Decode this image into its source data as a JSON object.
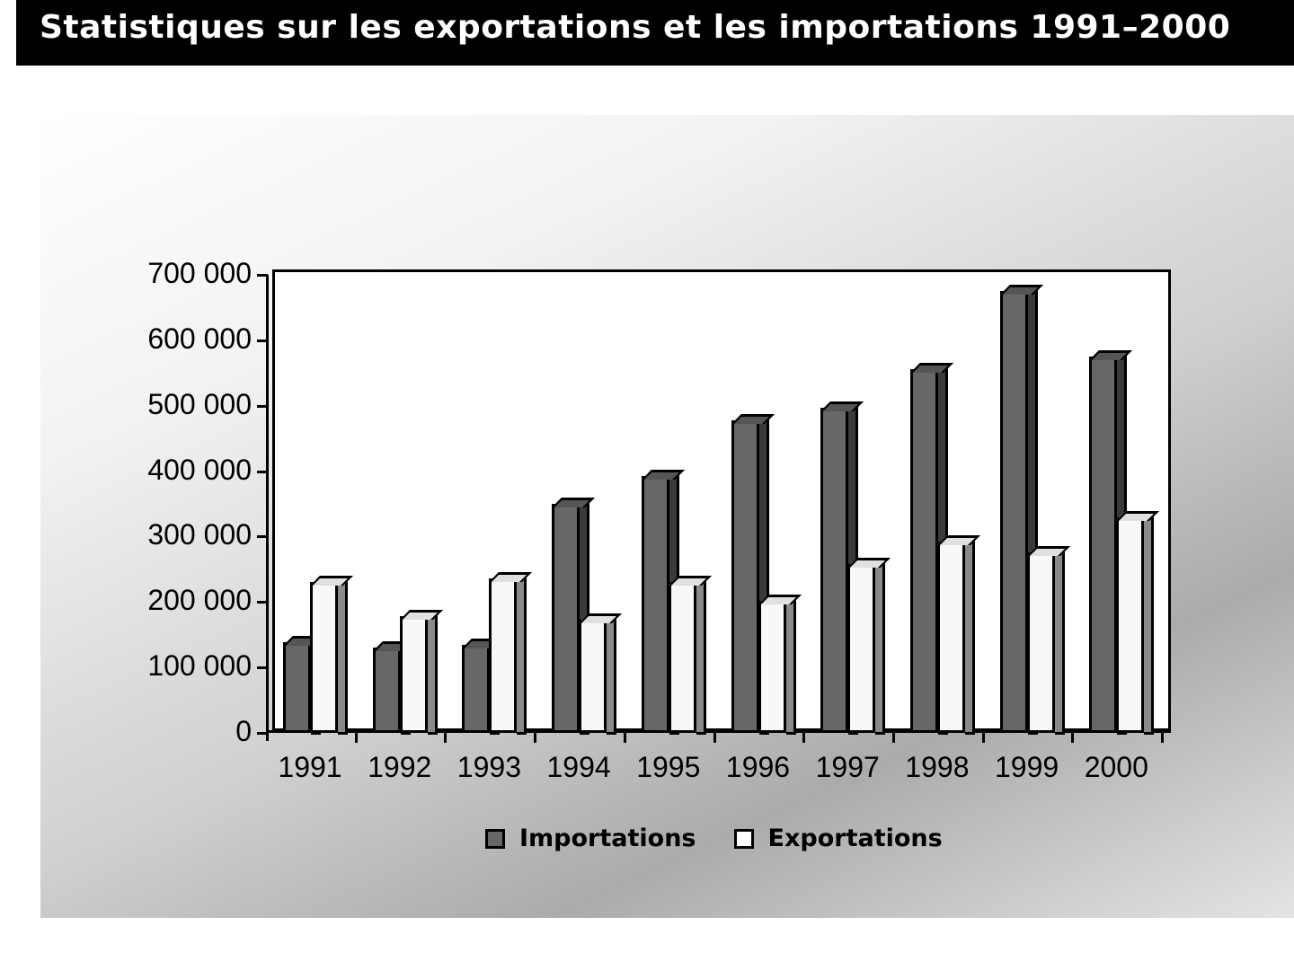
{
  "header": {
    "title": "Statistiques sur les exportations et les importations 1991–2000"
  },
  "legend": [
    {
      "label": "Importations",
      "color": "#676767"
    },
    {
      "label": "Exportations",
      "color": "#f8f8f8"
    }
  ],
  "y_ticks": [
    "700 000",
    "600 000",
    "500 000",
    "400 000",
    "300 000",
    "200 000",
    "100 000",
    "0"
  ],
  "chart_data": {
    "type": "bar",
    "title": "Statistiques sur les exportations et les importations 1991–2000",
    "xlabel": "",
    "ylabel": "",
    "categories": [
      "1991",
      "1992",
      "1993",
      "1994",
      "1995",
      "1996",
      "1997",
      "1998",
      "1999",
      "2000"
    ],
    "series": [
      {
        "name": "Importations",
        "values": [
          138000,
          130000,
          135000,
          350000,
          392000,
          477000,
          497000,
          556000,
          675000,
          575000
        ]
      },
      {
        "name": "Exportations",
        "values": [
          230000,
          178000,
          236000,
          173000,
          230000,
          202000,
          258000,
          293000,
          276000,
          330000
        ]
      }
    ],
    "ylim": [
      0,
      700000
    ],
    "yticks": [
      0,
      100000,
      200000,
      300000,
      400000,
      500000,
      600000,
      700000
    ],
    "grid": false,
    "legend_position": "bottom",
    "style": "3d-clustered-column, grayscale"
  }
}
